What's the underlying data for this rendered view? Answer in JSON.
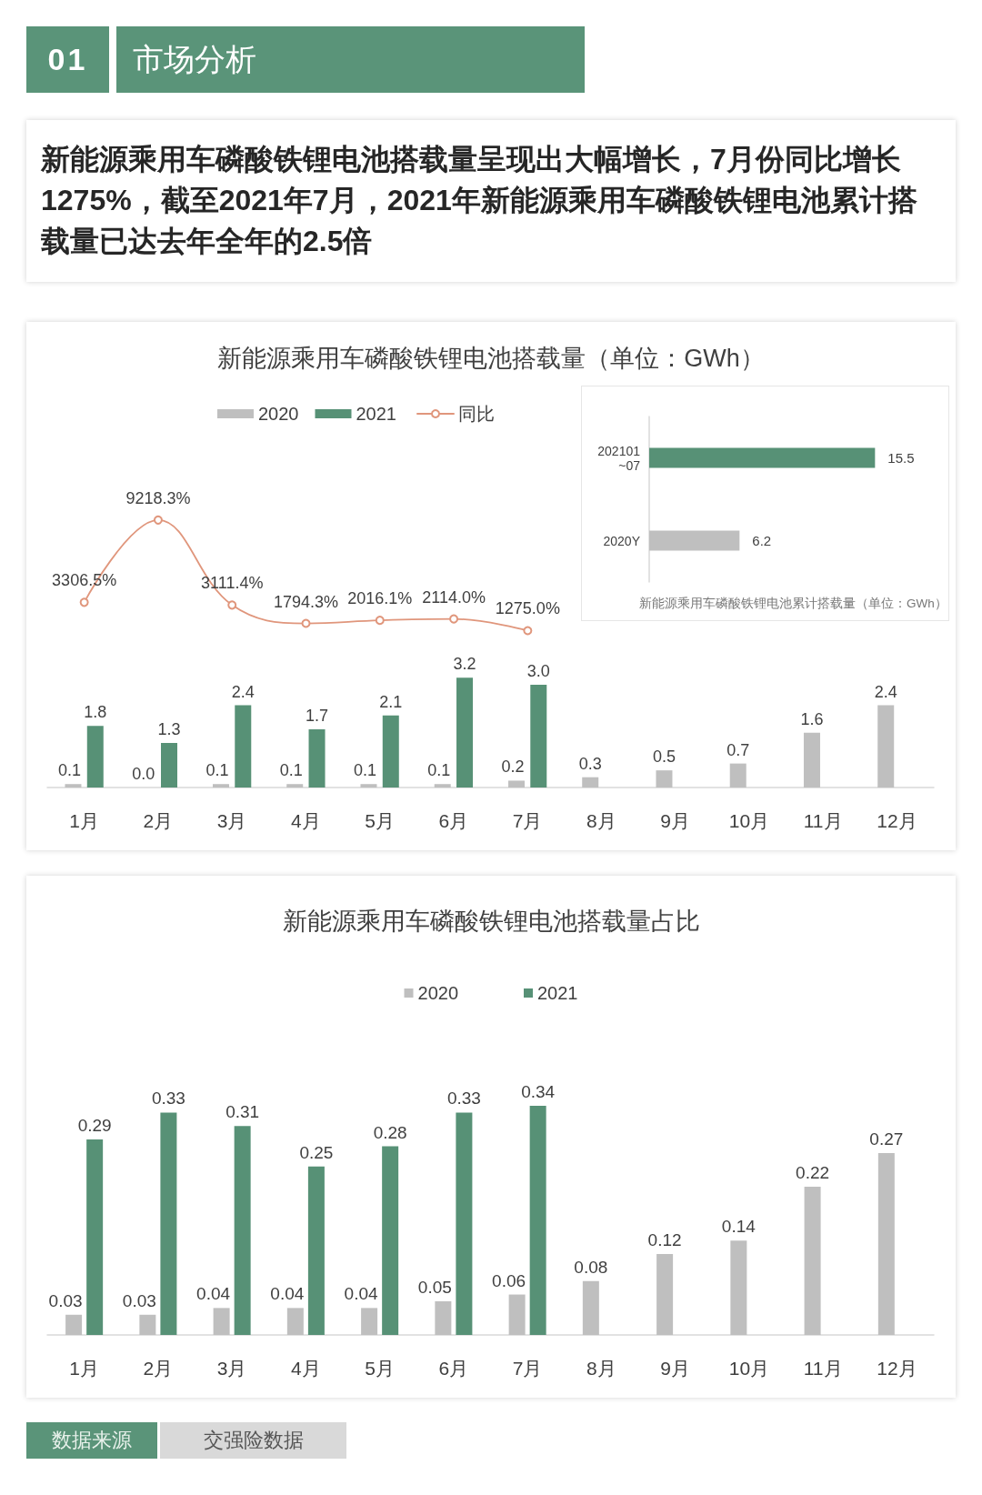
{
  "chart_data": [
    {
      "type": "other",
      "annotations": [
        "01",
        "市场分析",
        "新能源乘用车磷酸铁锂电池搭载量呈现出大幅增长，7月份同比增长1275%，截至2021年7月，2021年新能源乘用车磷酸铁锂电池累计搭载量已达去年全年的2.5倍"
      ]
    },
    {
      "type": "other",
      "annotations": [
        "新能源乘用车磷酸铁锂电池搭载量（单位：GWh）"
      ]
    },
    {
      "type": "bar",
      "categories": [
        "1月",
        "2月",
        "3月",
        "4月",
        "5月",
        "6月",
        "7月",
        "8月",
        "9月",
        "10月",
        "11月",
        "12月"
      ],
      "series": [
        {
          "name": "2020",
          "color": "#bfbfbf",
          "values": [
            0.1,
            0,
            0.1,
            0.1,
            0.1,
            0.1,
            0.2,
            0.3,
            0.5,
            0.7,
            1.6,
            2.4
          ],
          "value_labels": [
            "0.1",
            "0.0",
            "0.1",
            "0.1",
            "0.1",
            "0.1",
            "0.2",
            "0.3",
            "0.5",
            "0.7",
            "1.6",
            "2.4"
          ]
        },
        {
          "name": "2021",
          "color": "#579176",
          "values": [
            1.8,
            1.3,
            2.4,
            1.7,
            2.1,
            3.2,
            3.0,
            null,
            null,
            null,
            null,
            null
          ],
          "value_labels": [
            "1.8",
            "1.3",
            "2.4",
            "1.7",
            "2.1",
            "3.2",
            "3.0",
            null,
            null,
            null,
            null,
            null
          ]
        }
      ],
      "legend": "top"
    },
    {
      "type": "line",
      "categories": [
        "1月",
        "2月",
        "3月",
        "4月",
        "5月",
        "6月",
        "7月"
      ],
      "series": [
        {
          "name": "同比",
          "color": "#e0967c",
          "values": [
            3306.5,
            9218.3,
            3111.4,
            1794.3,
            2016.1,
            2114.0,
            1275.0
          ],
          "value_labels": [
            "3306.5%",
            "9218.3%",
            "3111.4%",
            "1794.3%",
            "2016.1%",
            "2114.0%",
            "1275.0%"
          ]
        }
      ],
      "marker": "circle",
      "legend": "top",
      "tick_labels": false
    },
    {
      "type": "bar",
      "orientation": "horizontal",
      "title": "新能源乘用车磷酸铁锂电池累计搭载量（单位：GWh）",
      "categories": [
        "202101~07",
        "2020Y"
      ],
      "values": [
        15.5,
        6.2
      ],
      "colors": [
        "#579176",
        "#bfbfbf"
      ],
      "data_labels": true
    },
    {
      "type": "bar",
      "title": "新能源乘用车磷酸铁锂电池搭载量占比",
      "categories": [
        "1月",
        "2月",
        "3月",
        "4月",
        "5月",
        "6月",
        "7月",
        "8月",
        "9月",
        "10月",
        "11月",
        "12月"
      ],
      "series": [
        {
          "name": "2020",
          "color": "#bfbfbf",
          "values": [
            0.03,
            0.03,
            0.04,
            0.04,
            0.04,
            0.05,
            0.06,
            0.08,
            0.12,
            0.14,
            0.22,
            0.27
          ]
        },
        {
          "name": "2021",
          "color": "#579176",
          "values": [
            0.29,
            0.33,
            0.31,
            0.25,
            0.28,
            0.33,
            0.34,
            null,
            null,
            null,
            null,
            null
          ]
        }
      ],
      "data_labels": true,
      "legend": "top"
    },
    {
      "type": "other",
      "annotations": [
        "数据来源",
        "交强险数据"
      ]
    }
  ]
}
